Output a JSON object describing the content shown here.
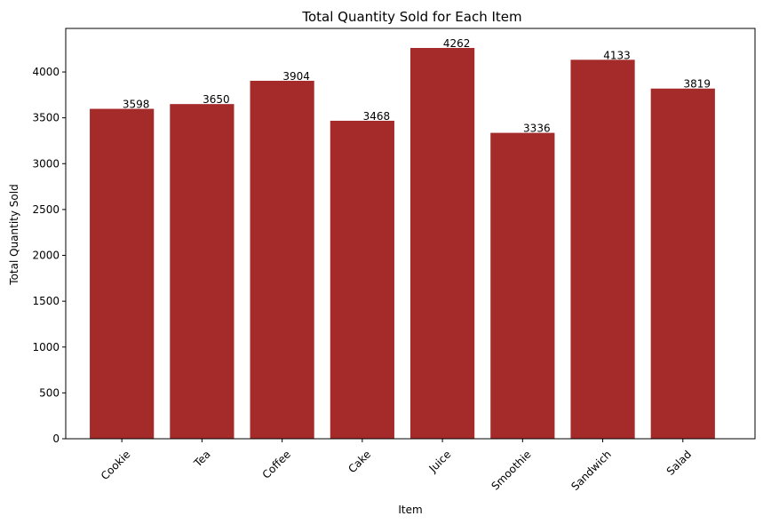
{
  "chart_data": {
    "type": "bar",
    "title": "Total Quantity Sold for Each Item",
    "xlabel": "Item",
    "ylabel": "Total Quantity Sold",
    "categories": [
      "Cookie",
      "Tea",
      "Coffee",
      "Cake",
      "Juice",
      "Smoothie",
      "Sandwich",
      "Salad"
    ],
    "values": [
      3598,
      3650,
      3904,
      3468,
      4262,
      3336,
      4133,
      3819
    ],
    "ylim": [
      0,
      4475
    ],
    "yticks": [
      0,
      500,
      1000,
      1500,
      2000,
      2500,
      3000,
      3500,
      4000
    ],
    "bar_color": "#a52a2a",
    "grid": false,
    "legend": "none",
    "x_tick_rotation": 45
  }
}
